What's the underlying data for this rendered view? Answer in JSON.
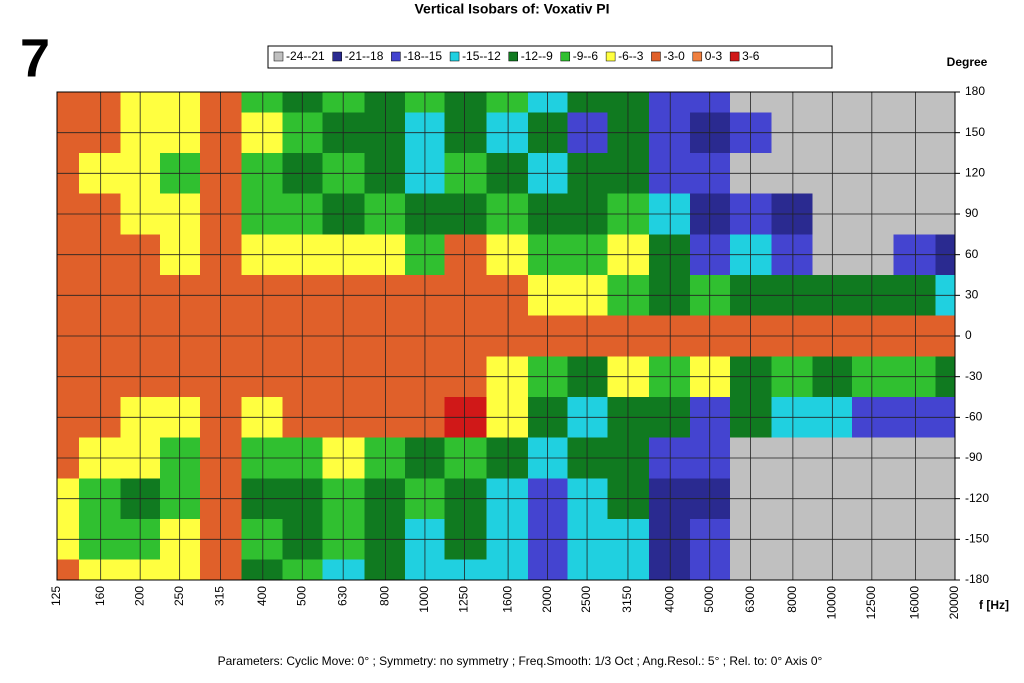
{
  "chart_data": {
    "type": "contour",
    "label": "7",
    "title": "Vertical Isobars of:   Voxativ  PI",
    "y_axis_label": "Degree",
    "x_axis_label": "f [Hz]",
    "footer": "Parameters:   Cyclic Move:  0°   ;   Symmetry: no symmetry   ;   Freq.Smooth: 1/3  Oct   ;   Ang.Resol.:  5°   ;   Rel. to: 0° Axis   0°",
    "levels": [
      {
        "label": "-24--21",
        "color": "#c0c0c0"
      },
      {
        "label": "-21--18",
        "color": "#2a2a90"
      },
      {
        "label": "-18--15",
        "color": "#4444d0"
      },
      {
        "label": "-15--12",
        "color": "#20d0e0"
      },
      {
        "label": "-12--9",
        "color": "#107a20"
      },
      {
        "label": "-9--6",
        "color": "#30c030"
      },
      {
        "label": "-6--3",
        "color": "#ffff40"
      },
      {
        "label": "-3-0",
        "color": "#e0602a"
      },
      {
        "label": "0-3",
        "color": "#f08040"
      },
      {
        "label": "3-6",
        "color": "#d01818"
      }
    ],
    "level_bounds": [
      -24,
      -21,
      -18,
      -15,
      -12,
      -9,
      -6,
      -3,
      0,
      3,
      6
    ],
    "x_log": true,
    "xlim": [
      125,
      20000
    ],
    "xticks": [
      125,
      160,
      200,
      250,
      315,
      400,
      500,
      630,
      800,
      1000,
      1250,
      1600,
      2000,
      2500,
      3150,
      4000,
      5000,
      6300,
      8000,
      10000,
      12500,
      16000,
      20000
    ],
    "ylim": [
      -180,
      180
    ],
    "yticks": [
      180,
      150,
      120,
      90,
      60,
      30,
      0,
      -30,
      -60,
      -90,
      -120,
      -150,
      -180
    ],
    "x": [
      125,
      160,
      200,
      250,
      315,
      400,
      500,
      630,
      800,
      1000,
      1250,
      1600,
      2000,
      2500,
      3150,
      4000,
      5000,
      6300,
      8000,
      10000,
      12500,
      16000,
      20000
    ],
    "y": [
      180,
      150,
      120,
      90,
      60,
      30,
      0,
      -30,
      -60,
      -90,
      -120,
      -150,
      -180
    ],
    "z": [
      [
        -1.5,
        -1.5,
        -4.5,
        -4.5,
        -1.5,
        -7.5,
        -10.5,
        -7.5,
        -10.5,
        -7.5,
        -10.5,
        -7.5,
        -13.5,
        -10.5,
        -10.5,
        -16.5,
        -16.5,
        -22.5,
        -22.5,
        -22.5,
        -22.5,
        -22.5,
        -22.5
      ],
      [
        -1.5,
        -1.5,
        -4.5,
        -4.5,
        -1.5,
        -4.5,
        -7.5,
        -10.5,
        -10.5,
        -13.5,
        -10.5,
        -13.5,
        -10.5,
        -16.5,
        -10.5,
        -16.5,
        -19.5,
        -16.5,
        -22.5,
        -22.5,
        -22.5,
        -22.5,
        -22.5
      ],
      [
        -1.5,
        -4.5,
        -4.5,
        -7.5,
        -1.5,
        -7.5,
        -10.5,
        -7.5,
        -10.5,
        -13.5,
        -7.5,
        -10.5,
        -13.5,
        -10.5,
        -10.5,
        -16.5,
        -16.5,
        -22.5,
        -22.5,
        -22.5,
        -22.5,
        -22.5,
        -22.5
      ],
      [
        -1.5,
        -1.5,
        -4.5,
        -4.5,
        -1.5,
        -7.5,
        -7.5,
        -10.5,
        -7.5,
        -10.5,
        -10.5,
        -7.5,
        -10.5,
        -10.5,
        -7.5,
        -13.5,
        -19.5,
        -16.5,
        -19.5,
        -22.5,
        -22.5,
        -22.5,
        -22.5
      ],
      [
        -1.5,
        -1.5,
        -1.5,
        -4.5,
        -1.5,
        -4.5,
        -4.5,
        -4.5,
        -4.5,
        -7.5,
        -1.5,
        -4.5,
        -7.5,
        -7.5,
        -4.5,
        -10.5,
        -16.5,
        -13.5,
        -16.5,
        -22.5,
        -22.5,
        -16.5,
        -19.5
      ],
      [
        -1.5,
        -1.5,
        -1.5,
        -1.5,
        -1.5,
        -1.5,
        -1.5,
        -1.5,
        -1.5,
        -1.5,
        -1.5,
        -1.5,
        -4.5,
        -4.5,
        -7.5,
        -10.5,
        -7.5,
        -10.5,
        -10.5,
        -10.5,
        -10.5,
        -10.5,
        -13.5
      ],
      [
        -1.5,
        -1.5,
        -1.5,
        -1.5,
        -1.5,
        -1.5,
        -1.5,
        -1.5,
        -1.5,
        -1.5,
        -1.5,
        -1.5,
        -1.5,
        -1.5,
        -1.5,
        -1.5,
        -1.5,
        -1.5,
        -1.5,
        -1.5,
        -1.5,
        -1.5,
        -1.5
      ],
      [
        -1.5,
        -1.5,
        -1.5,
        -1.5,
        -1.5,
        -1.5,
        -1.5,
        -1.5,
        -1.5,
        -1.5,
        -1.5,
        -4.5,
        -7.5,
        -10.5,
        -4.5,
        -7.5,
        -4.5,
        -10.5,
        -7.5,
        -10.5,
        -7.5,
        -7.5,
        -10.5
      ],
      [
        -1.5,
        -1.5,
        -4.5,
        -4.5,
        -1.5,
        -4.5,
        -1.5,
        -1.5,
        -1.5,
        -1.5,
        4.5,
        -4.5,
        -10.5,
        -13.5,
        -10.5,
        -10.5,
        -16.5,
        -10.5,
        -13.5,
        -13.5,
        -16.5,
        -16.5,
        -16.5
      ],
      [
        -1.5,
        -4.5,
        -4.5,
        -7.5,
        -1.5,
        -7.5,
        -7.5,
        -4.5,
        -7.5,
        -10.5,
        -7.5,
        -10.5,
        -13.5,
        -10.5,
        -10.5,
        -16.5,
        -16.5,
        -22.5,
        -22.5,
        -22.5,
        -22.5,
        -22.5,
        -22.5
      ],
      [
        -4.5,
        -7.5,
        -10.5,
        -7.5,
        -1.5,
        -10.5,
        -10.5,
        -7.5,
        -10.5,
        -7.5,
        -10.5,
        -13.5,
        -16.5,
        -13.5,
        -10.5,
        -19.5,
        -19.5,
        -22.5,
        -22.5,
        -22.5,
        -22.5,
        -22.5,
        -22.5
      ],
      [
        -4.5,
        -7.5,
        -7.5,
        -4.5,
        -1.5,
        -7.5,
        -10.5,
        -7.5,
        -10.5,
        -13.5,
        -10.5,
        -13.5,
        -16.5,
        -13.5,
        -13.5,
        -19.5,
        -16.5,
        -22.5,
        -22.5,
        -22.5,
        -22.5,
        -22.5,
        -22.5
      ],
      [
        -1.5,
        -4.5,
        -4.5,
        -4.5,
        -1.5,
        -10.5,
        -7.5,
        -13.5,
        -10.5,
        -13.5,
        -13.5,
        -13.5,
        -16.5,
        -13.5,
        -13.5,
        -19.5,
        -16.5,
        -22.5,
        -22.5,
        -22.5,
        -22.5,
        -22.5,
        -22.5
      ]
    ],
    "grid": true
  }
}
